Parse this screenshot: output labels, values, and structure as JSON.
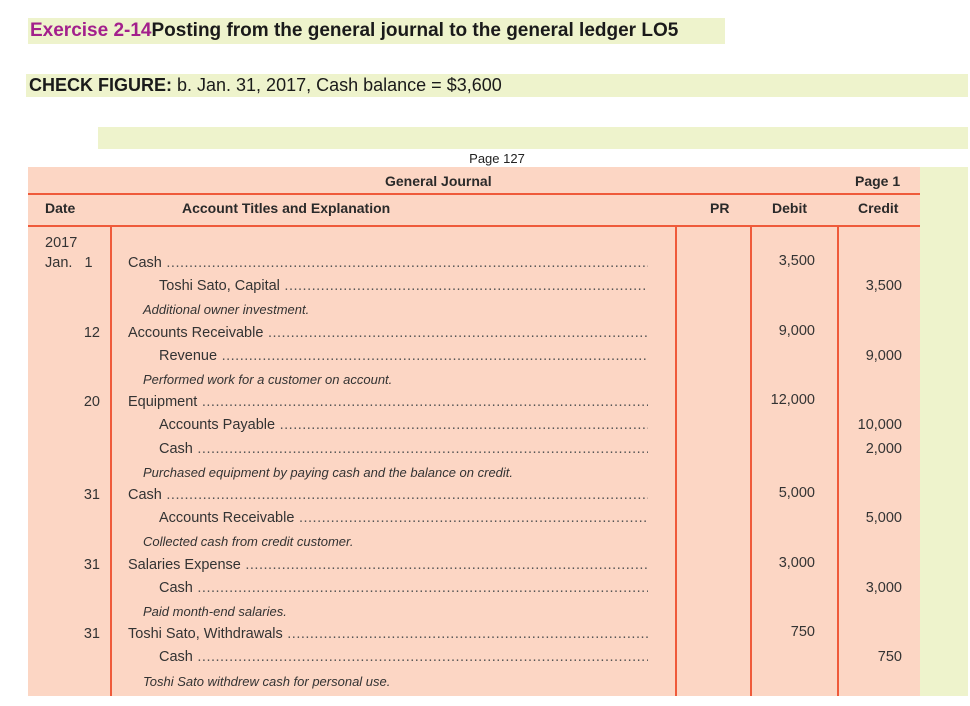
{
  "title": {
    "exercise": "Exercise 2-14",
    "heading": "Posting from the general journal to the general ledger LO5"
  },
  "check_figure": {
    "label": "CHECK FIGURE:",
    "text": " b. Jan. 31, 2017, Cash balance = $3,600"
  },
  "page_ref": "Page 127",
  "journal": {
    "title": "General Journal",
    "page": "Page 1",
    "columns": {
      "date": "Date",
      "account": "Account Titles and Explanation",
      "pr": "PR",
      "debit": "Debit",
      "credit": "Credit"
    },
    "year": "2017",
    "rows": [
      {
        "date": "Jan.   1",
        "account": "Cash",
        "indent": 0,
        "debit": "3,500",
        "credit": "",
        "type": "acct"
      },
      {
        "date": "",
        "account": "Toshi Sato, Capital",
        "indent": 1,
        "debit": "",
        "credit": "3,500",
        "type": "acct"
      },
      {
        "date": "",
        "account": "Additional owner investment.",
        "indent": 0,
        "debit": "",
        "credit": "",
        "type": "expl"
      },
      {
        "date": "12",
        "account": "Accounts Receivable",
        "indent": 0,
        "debit": "9,000",
        "credit": "",
        "type": "acct"
      },
      {
        "date": "",
        "account": "Revenue",
        "indent": 1,
        "debit": "",
        "credit": "9,000",
        "type": "acct"
      },
      {
        "date": "",
        "account": "Performed work for a customer on account.",
        "indent": 0,
        "debit": "",
        "credit": "",
        "type": "expl"
      },
      {
        "date": "20",
        "account": "Equipment",
        "indent": 0,
        "debit": "12,000",
        "credit": "",
        "type": "acct"
      },
      {
        "date": "",
        "account": "Accounts Payable",
        "indent": 1,
        "debit": "",
        "credit": "10,000",
        "type": "acct"
      },
      {
        "date": "",
        "account": "Cash",
        "indent": 1,
        "debit": "",
        "credit": "2,000",
        "type": "acct"
      },
      {
        "date": "",
        "account": "Purchased equipment by paying cash and the balance on credit.",
        "indent": 0,
        "debit": "",
        "credit": "",
        "type": "expl"
      },
      {
        "date": "31",
        "account": "Cash",
        "indent": 0,
        "debit": "5,000",
        "credit": "",
        "type": "acct"
      },
      {
        "date": "",
        "account": "Accounts Receivable",
        "indent": 1,
        "debit": "",
        "credit": "5,000",
        "type": "acct"
      },
      {
        "date": "",
        "account": "Collected cash from credit customer.",
        "indent": 0,
        "debit": "",
        "credit": "",
        "type": "expl"
      },
      {
        "date": "31",
        "account": "Salaries Expense",
        "indent": 0,
        "debit": "3,000",
        "credit": "",
        "type": "acct"
      },
      {
        "date": "",
        "account": "Cash",
        "indent": 1,
        "debit": "",
        "credit": "3,000",
        "type": "acct"
      },
      {
        "date": "",
        "account": "Paid month-end salaries.",
        "indent": 0,
        "debit": "",
        "credit": "",
        "type": "expl"
      },
      {
        "date": "31",
        "account": "Toshi Sato, Withdrawals",
        "indent": 0,
        "debit": "750",
        "credit": "",
        "type": "acct"
      },
      {
        "date": "",
        "account": "Cash",
        "indent": 1,
        "debit": "",
        "credit": "750",
        "type": "acct"
      },
      {
        "date": "",
        "account": "Toshi Sato withdrew cash for personal use.",
        "indent": 0,
        "debit": "",
        "credit": "",
        "type": "expl"
      }
    ]
  },
  "colors": {
    "exercise_label": "#a3208c",
    "highlight_bg": "#eef3cc",
    "journal_bg": "#fcd6c4",
    "rule_line": "#ef5a3a"
  }
}
